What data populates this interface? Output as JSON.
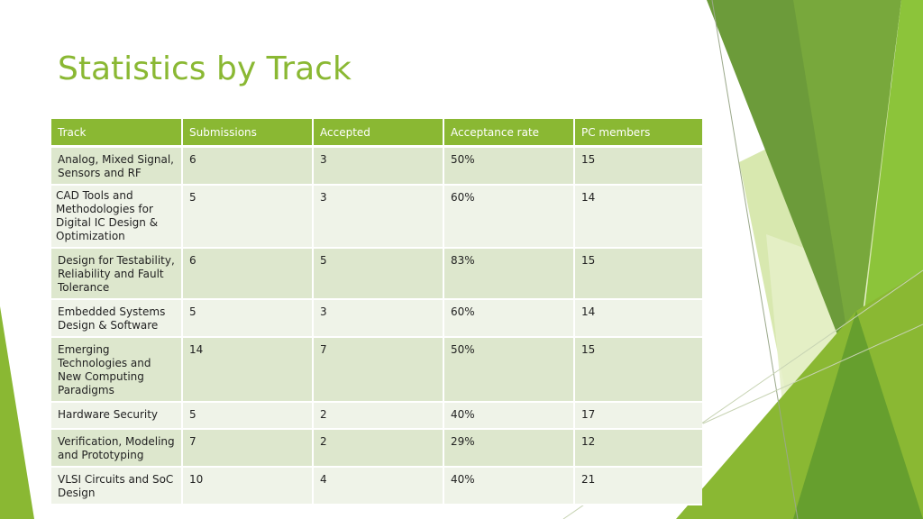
{
  "title": "Statistics by Track",
  "table": {
    "headers": [
      "Track",
      "Submissions",
      "Accepted",
      "Acceptance rate",
      "PC members"
    ],
    "rows": [
      [
        "Analog, Mixed Signal, Sensors and RF",
        "6",
        "3",
        "50%",
        "15"
      ],
      [
        "CAD Tools and Methodologies for Digital IC Design & Optimization",
        "5",
        "3",
        "60%",
        "14"
      ],
      [
        "Design for Testability, Reliability and Fault Tolerance",
        "6",
        "5",
        "83%",
        "15"
      ],
      [
        "Embedded Systems Design & Software",
        "5",
        "3",
        "60%",
        "14"
      ],
      [
        "Emerging Technologies and New Computing Paradigms",
        "14",
        "7",
        "50%",
        "15"
      ],
      [
        "Hardware Security",
        "5",
        "2",
        "40%",
        "17"
      ],
      [
        "Verification, Modeling and Prototyping",
        "7",
        "2",
        "29%",
        "12"
      ],
      [
        "VLSI Circuits and SoC Design",
        "10",
        "4",
        "40%",
        "21"
      ]
    ]
  },
  "colors": {
    "accent": "#8ab833",
    "row_odd": "#dde7cd",
    "row_even": "#eff3e8"
  }
}
